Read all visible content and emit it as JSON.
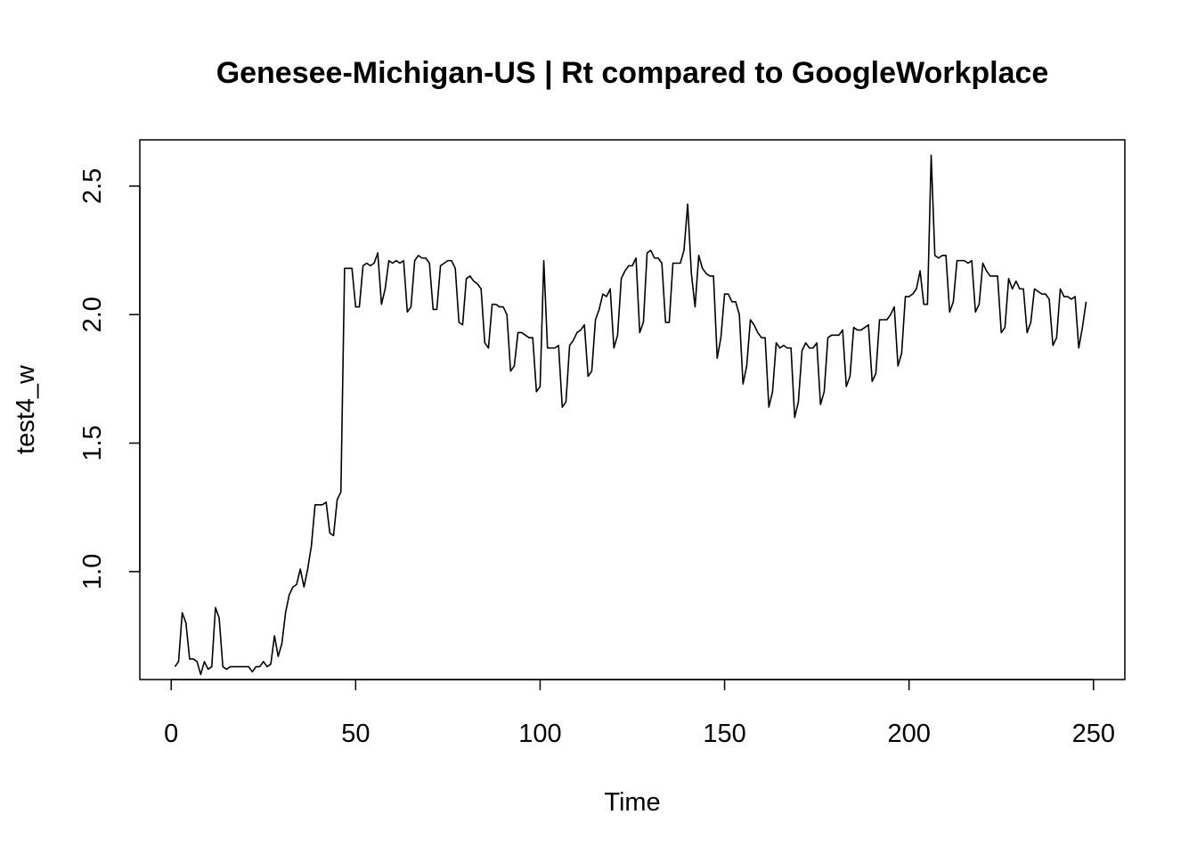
{
  "chart_data": {
    "type": "line",
    "title": "Genesee-Michigan-US | Rt compared to GoogleWorkplace",
    "xlabel": "Time",
    "ylabel": "test4_w",
    "xlim": [
      -8.5,
      258.5
    ],
    "ylim": [
      0.58,
      2.68
    ],
    "xticks": [
      0,
      50,
      100,
      150,
      200,
      250
    ],
    "xtick_labels": [
      "0",
      "50",
      "100",
      "150",
      "200",
      "250"
    ],
    "yticks": [
      1.0,
      1.5,
      2.0,
      2.5
    ],
    "ytick_labels": [
      "1.0",
      "1.5",
      "2.0",
      "2.5"
    ],
    "grid": false,
    "line_color": "#000000",
    "series": [
      {
        "x": [
          1,
          2,
          3,
          4,
          5,
          6,
          7,
          8,
          9,
          10,
          11,
          12,
          13,
          14,
          15,
          16,
          17,
          18,
          19,
          20,
          21,
          22,
          23,
          24,
          25,
          26,
          27,
          28,
          29,
          30,
          31,
          32,
          33,
          34,
          35,
          36,
          37,
          38,
          39,
          40,
          41,
          42,
          43,
          44,
          45,
          46,
          47,
          48,
          49,
          50,
          51,
          52,
          53,
          54,
          55,
          56,
          57,
          58,
          59,
          60,
          61,
          62,
          63,
          64,
          65,
          66,
          67,
          68,
          69,
          70,
          71,
          72,
          73,
          74,
          75,
          76,
          77,
          78,
          79,
          80,
          81,
          82,
          83,
          84,
          85,
          86,
          87,
          88,
          89,
          90,
          91,
          92,
          93,
          94,
          95,
          96,
          97,
          98,
          99,
          100,
          101,
          102,
          103,
          104,
          105,
          106,
          107,
          108,
          109,
          110,
          111,
          112,
          113,
          114,
          115,
          116,
          117,
          118,
          119,
          120,
          121,
          122,
          123,
          124,
          125,
          126,
          127,
          128,
          129,
          130,
          131,
          132,
          133,
          134,
          135,
          136,
          137,
          138,
          139,
          140,
          141,
          142,
          143,
          144,
          145,
          146,
          147,
          148,
          149,
          150,
          151,
          152,
          153,
          154,
          155,
          156,
          157,
          158,
          159,
          160,
          161,
          162,
          163,
          164,
          165,
          166,
          167,
          168,
          169,
          170,
          171,
          172,
          173,
          174,
          175,
          176,
          177,
          178,
          179,
          180,
          181,
          182,
          183,
          184,
          185,
          186,
          187,
          188,
          189,
          190,
          191,
          192,
          193,
          194,
          195,
          196,
          197,
          198,
          199,
          200,
          201,
          202,
          203,
          204,
          205,
          206,
          207,
          208,
          209,
          210,
          211,
          212,
          213,
          214,
          215,
          216,
          217,
          218,
          219,
          220,
          221,
          222,
          223,
          224,
          225,
          226,
          227,
          228,
          229,
          230,
          231,
          232,
          233,
          234,
          235,
          236,
          237,
          238,
          239,
          240,
          241,
          242,
          243,
          244,
          245,
          246,
          247,
          248
        ],
        "values": [
          0.63,
          0.65,
          0.84,
          0.8,
          0.66,
          0.66,
          0.65,
          0.6,
          0.65,
          0.62,
          0.63,
          0.86,
          0.82,
          0.63,
          0.62,
          0.63,
          0.63,
          0.63,
          0.63,
          0.63,
          0.63,
          0.61,
          0.63,
          0.63,
          0.65,
          0.63,
          0.64,
          0.75,
          0.67,
          0.72,
          0.84,
          0.91,
          0.94,
          0.95,
          1.01,
          0.94,
          1.01,
          1.1,
          1.26,
          1.26,
          1.26,
          1.27,
          1.15,
          1.14,
          1.28,
          1.31,
          2.18,
          2.18,
          2.18,
          2.03,
          2.03,
          2.19,
          2.2,
          2.19,
          2.2,
          2.24,
          2.04,
          2.1,
          2.21,
          2.2,
          2.21,
          2.2,
          2.21,
          2.01,
          2.03,
          2.21,
          2.23,
          2.22,
          2.22,
          2.2,
          2.02,
          2.02,
          2.19,
          2.2,
          2.21,
          2.21,
          2.18,
          1.97,
          1.96,
          2.14,
          2.15,
          2.13,
          2.12,
          2.1,
          1.89,
          1.87,
          2.04,
          2.04,
          2.03,
          2.03,
          2.0,
          1.78,
          1.8,
          1.93,
          1.93,
          1.92,
          1.91,
          1.91,
          1.7,
          1.72,
          2.21,
          1.87,
          1.87,
          1.87,
          1.88,
          1.64,
          1.66,
          1.88,
          1.9,
          1.93,
          1.94,
          1.96,
          1.76,
          1.78,
          1.98,
          2.02,
          2.08,
          2.07,
          2.1,
          1.87,
          1.92,
          2.14,
          2.17,
          2.19,
          2.19,
          2.22,
          1.93,
          1.97,
          2.24,
          2.25,
          2.22,
          2.22,
          2.2,
          1.97,
          1.97,
          2.2,
          2.2,
          2.2,
          2.25,
          2.43,
          2.16,
          2.03,
          2.23,
          2.18,
          2.16,
          2.15,
          2.15,
          1.83,
          1.91,
          2.08,
          2.08,
          2.05,
          2.05,
          2.0,
          1.73,
          1.8,
          1.98,
          1.96,
          1.93,
          1.91,
          1.91,
          1.64,
          1.7,
          1.89,
          1.87,
          1.88,
          1.87,
          1.87,
          1.6,
          1.66,
          1.86,
          1.89,
          1.87,
          1.87,
          1.89,
          1.65,
          1.7,
          1.91,
          1.92,
          1.92,
          1.92,
          1.94,
          1.72,
          1.76,
          1.95,
          1.94,
          1.94,
          1.95,
          1.96,
          1.74,
          1.77,
          1.98,
          1.98,
          1.98,
          2.0,
          2.03,
          1.8,
          1.85,
          2.07,
          2.07,
          2.08,
          2.1,
          2.17,
          2.04,
          2.04,
          2.62,
          2.23,
          2.22,
          2.23,
          2.23,
          2.01,
          2.05,
          2.21,
          2.21,
          2.21,
          2.2,
          2.21,
          2.01,
          2.04,
          2.2,
          2.17,
          2.15,
          2.15,
          2.15,
          1.93,
          1.95,
          2.14,
          2.1,
          2.13,
          2.1,
          2.1,
          1.93,
          1.97,
          2.1,
          2.09,
          2.08,
          2.08,
          2.06,
          1.88,
          1.91,
          2.1,
          2.07,
          2.07,
          2.06,
          2.07,
          1.87,
          1.95,
          2.05
        ]
      }
    ]
  }
}
